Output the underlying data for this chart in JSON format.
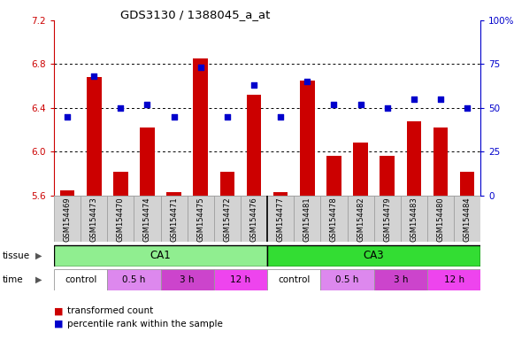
{
  "title": "GDS3130 / 1388045_a_at",
  "samples": [
    "GSM154469",
    "GSM154473",
    "GSM154470",
    "GSM154474",
    "GSM154471",
    "GSM154475",
    "GSM154472",
    "GSM154476",
    "GSM154477",
    "GSM154481",
    "GSM154478",
    "GSM154482",
    "GSM154479",
    "GSM154483",
    "GSM154480",
    "GSM154484"
  ],
  "transformed_counts": [
    5.65,
    6.68,
    5.82,
    6.22,
    5.63,
    6.85,
    5.82,
    6.52,
    5.63,
    6.65,
    5.96,
    6.08,
    5.96,
    6.28,
    6.22,
    5.82
  ],
  "percentile_ranks": [
    45,
    68,
    50,
    52,
    45,
    73,
    45,
    63,
    45,
    65,
    52,
    52,
    50,
    55,
    55,
    50
  ],
  "ylim_left": [
    5.6,
    7.2
  ],
  "ylim_right": [
    0,
    100
  ],
  "yticks_left": [
    5.6,
    6.0,
    6.4,
    6.8,
    7.2
  ],
  "yticks_right": [
    0,
    25,
    50,
    75,
    100
  ],
  "bar_color": "#cc0000",
  "dot_color": "#0000cc",
  "tissue_ca1_color": "#90ee90",
  "tissue_ca3_color": "#33dd33",
  "time_control_color": "#ffffff",
  "time_05h_color": "#dd88ee",
  "time_3h_color": "#cc44cc",
  "time_12h_color": "#ee44ee",
  "xticklabel_bg": "#d3d3d3",
  "legend_bar_label": "transformed count",
  "legend_dot_label": "percentile rank within the sample",
  "xlabel_color_left": "#cc0000",
  "xlabel_color_right": "#0000cc"
}
